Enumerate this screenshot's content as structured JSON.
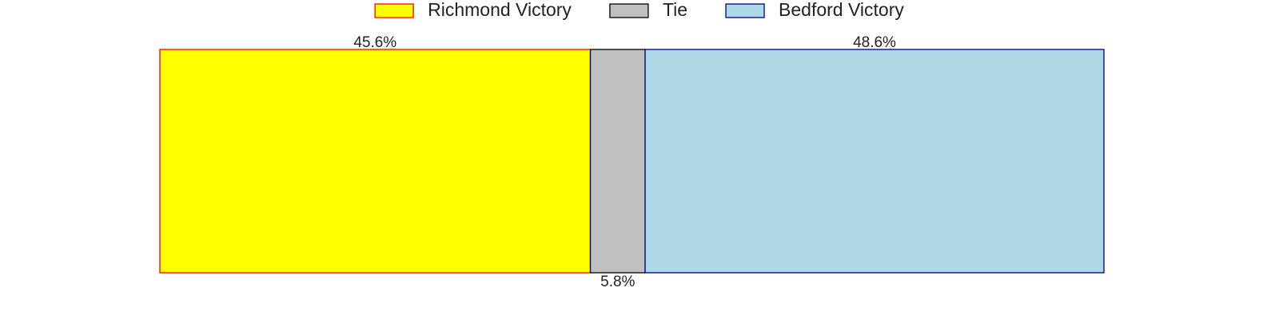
{
  "chart_data": {
    "type": "stacked-bar",
    "orientation": "horizontal",
    "series": [
      {
        "name": "Richmond Victory",
        "color": "#ffff00",
        "edgecolor": "#ff0000",
        "values": [
          45.6
        ],
        "value_labels": [
          "45.6%"
        ]
      },
      {
        "name": "Tie",
        "color": "#c0c0c0",
        "edgecolor": "#000000",
        "values": [
          5.8
        ],
        "value_labels": [
          "5.8%"
        ]
      },
      {
        "name": "Bedford Victory",
        "color": "#add8e6",
        "edgecolor": "#000080",
        "values": [
          48.6
        ],
        "value_labels": [
          "48.6%"
        ]
      }
    ],
    "legend": "upper center"
  }
}
